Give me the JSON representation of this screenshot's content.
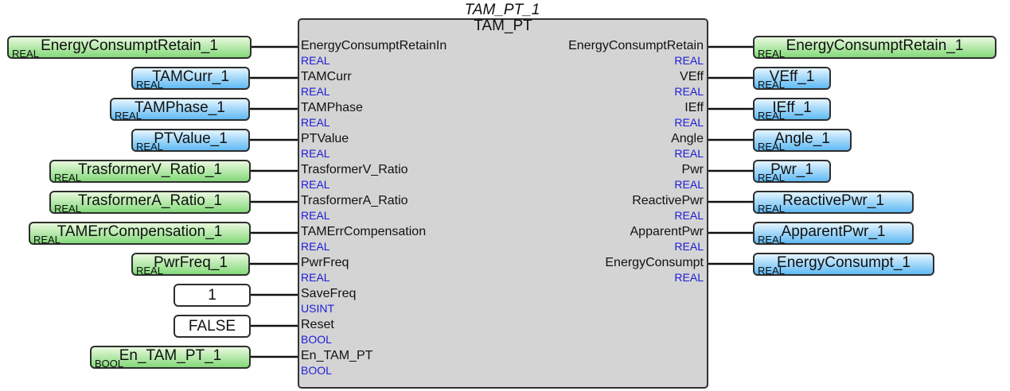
{
  "block": {
    "instance": "TAM_PT_1",
    "type": "TAM_PT"
  },
  "inputs": [
    {
      "pin": "EnergyConsumptRetainIn",
      "pin_type": "REAL",
      "var": "EnergyConsumptRetain_1",
      "var_type": "REAL",
      "style": "green"
    },
    {
      "pin": "TAMCurr",
      "pin_type": "REAL",
      "var": "TAMCurr_1",
      "var_type": "REAL",
      "style": "blue"
    },
    {
      "pin": "TAMPhase",
      "pin_type": "REAL",
      "var": "TAMPhase_1",
      "var_type": "REAL",
      "style": "blue"
    },
    {
      "pin": "PTValue",
      "pin_type": "REAL",
      "var": "PTValue_1",
      "var_type": "REAL",
      "style": "blue"
    },
    {
      "pin": "TrasformerV_Ratio",
      "pin_type": "REAL",
      "var": "TrasformerV_Ratio_1",
      "var_type": "REAL",
      "style": "green"
    },
    {
      "pin": "TrasformerA_Ratio",
      "pin_type": "REAL",
      "var": "TrasformerA_Ratio_1",
      "var_type": "REAL",
      "style": "green"
    },
    {
      "pin": "TAMErrCompensation",
      "pin_type": "REAL",
      "var": "TAMErrCompensation_1",
      "var_type": "REAL",
      "style": "green"
    },
    {
      "pin": "PwrFreq",
      "pin_type": "REAL",
      "var": "PwrFreq_1",
      "var_type": "REAL",
      "style": "green"
    },
    {
      "pin": "SaveFreq",
      "pin_type": "USINT",
      "var": "1",
      "var_type": "",
      "style": "const"
    },
    {
      "pin": "Reset",
      "pin_type": "BOOL",
      "var": "FALSE",
      "var_type": "",
      "style": "const"
    },
    {
      "pin": "En_TAM_PT",
      "pin_type": "BOOL",
      "var": "En_TAM_PT_1",
      "var_type": "BOOL",
      "style": "green"
    }
  ],
  "outputs": [
    {
      "pin": "EnergyConsumptRetain",
      "pin_type": "REAL",
      "var": "EnergyConsumptRetain_1",
      "var_type": "REAL",
      "style": "green"
    },
    {
      "pin": "VEff",
      "pin_type": "REAL",
      "var": "VEff_1",
      "var_type": "REAL",
      "style": "blue"
    },
    {
      "pin": "IEff",
      "pin_type": "REAL",
      "var": "IEff_1",
      "var_type": "REAL",
      "style": "blue"
    },
    {
      "pin": "Angle",
      "pin_type": "REAL",
      "var": "Angle_1",
      "var_type": "REAL",
      "style": "blue"
    },
    {
      "pin": "Pwr",
      "pin_type": "REAL",
      "var": "Pwr_1",
      "var_type": "REAL",
      "style": "blue"
    },
    {
      "pin": "ReactivePwr",
      "pin_type": "REAL",
      "var": "ReactivePwr_1",
      "var_type": "REAL",
      "style": "blue"
    },
    {
      "pin": "ApparentPwr",
      "pin_type": "REAL",
      "var": "ApparentPwr_1",
      "var_type": "REAL",
      "style": "blue"
    },
    {
      "pin": "EnergyConsumpt",
      "pin_type": "REAL",
      "var": "EnergyConsumpt_1",
      "var_type": "REAL",
      "style": "blue"
    }
  ]
}
